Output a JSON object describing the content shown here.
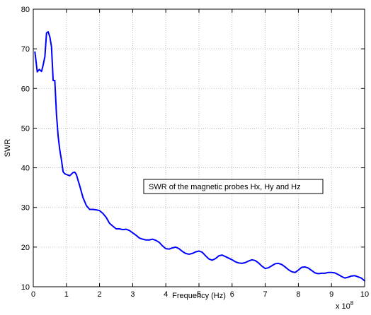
{
  "chart_data": {
    "type": "line",
    "title": "",
    "xlabel": "Frequency (Hz)",
    "ylabel": "SWR",
    "x_multiplier_label": "x 10",
    "x_multiplier_exponent": "8",
    "xlim": [
      0,
      10
    ],
    "ylim": [
      10,
      80
    ],
    "x_ticks": [
      0,
      1,
      2,
      3,
      4,
      5,
      6,
      7,
      8,
      9,
      10
    ],
    "y_ticks": [
      10,
      20,
      30,
      40,
      50,
      60,
      70,
      80
    ],
    "grid": true,
    "annotation": "SWR of the magnetic probes Hx, Hy and Hz",
    "series": [
      {
        "color": "#0000ff",
        "x": [
          0.05,
          0.12,
          0.18,
          0.25,
          0.3,
          0.35,
          0.4,
          0.45,
          0.5,
          0.55,
          0.6,
          0.65,
          0.7,
          0.75,
          0.8,
          0.85,
          0.9,
          0.95,
          1.0,
          1.1,
          1.2,
          1.25,
          1.3,
          1.4,
          1.5,
          1.6,
          1.7,
          1.8,
          1.9,
          2.0,
          2.1,
          2.2,
          2.3,
          2.4,
          2.5,
          2.6,
          2.7,
          2.8,
          2.9,
          3.0,
          3.1,
          3.2,
          3.3,
          3.4,
          3.5,
          3.6,
          3.7,
          3.8,
          3.9,
          4.0,
          4.1,
          4.2,
          4.3,
          4.4,
          4.5,
          4.6,
          4.7,
          4.8,
          4.9,
          5.0,
          5.1,
          5.2,
          5.3,
          5.4,
          5.5,
          5.6,
          5.7,
          5.8,
          5.9,
          6.0,
          6.1,
          6.2,
          6.3,
          6.4,
          6.5,
          6.6,
          6.7,
          6.8,
          6.9,
          7.0,
          7.1,
          7.2,
          7.3,
          7.4,
          7.5,
          7.6,
          7.7,
          7.8,
          7.9,
          8.0,
          8.1,
          8.2,
          8.3,
          8.4,
          8.5,
          8.6,
          8.7,
          8.8,
          8.9,
          9.0,
          9.1,
          9.2,
          9.3,
          9.4,
          9.5,
          9.6,
          9.7,
          9.8,
          9.9,
          10.0
        ],
        "y": [
          69.2,
          64.2,
          64.8,
          64.3,
          66.0,
          68.0,
          74.0,
          74.3,
          73.0,
          70.5,
          62.0,
          62.0,
          53.5,
          48.0,
          44.5,
          42.0,
          39.0,
          38.5,
          38.3,
          38.0,
          38.8,
          38.9,
          38.3,
          35.5,
          32.5,
          30.5,
          29.5,
          29.5,
          29.4,
          29.2,
          28.5,
          27.5,
          26.0,
          25.3,
          24.6,
          24.6,
          24.4,
          24.5,
          24.2,
          23.6,
          23.0,
          22.3,
          22.0,
          21.8,
          21.8,
          22.0,
          21.7,
          21.2,
          20.3,
          19.6,
          19.5,
          19.8,
          20.0,
          19.6,
          18.9,
          18.4,
          18.2,
          18.4,
          18.8,
          19.0,
          18.7,
          17.8,
          17.0,
          16.7,
          17.1,
          17.8,
          18.0,
          17.6,
          17.2,
          16.8,
          16.3,
          16.0,
          15.9,
          16.1,
          16.5,
          16.8,
          16.6,
          16.0,
          15.2,
          14.6,
          14.8,
          15.3,
          15.8,
          15.9,
          15.6,
          15.0,
          14.3,
          13.8,
          13.6,
          14.2,
          14.9,
          15.0,
          14.7,
          14.1,
          13.5,
          13.3,
          13.4,
          13.4,
          13.6,
          13.6,
          13.5,
          13.1,
          12.6,
          12.2,
          12.4,
          12.7,
          12.8,
          12.5,
          12.2,
          11.5
        ]
      }
    ]
  }
}
